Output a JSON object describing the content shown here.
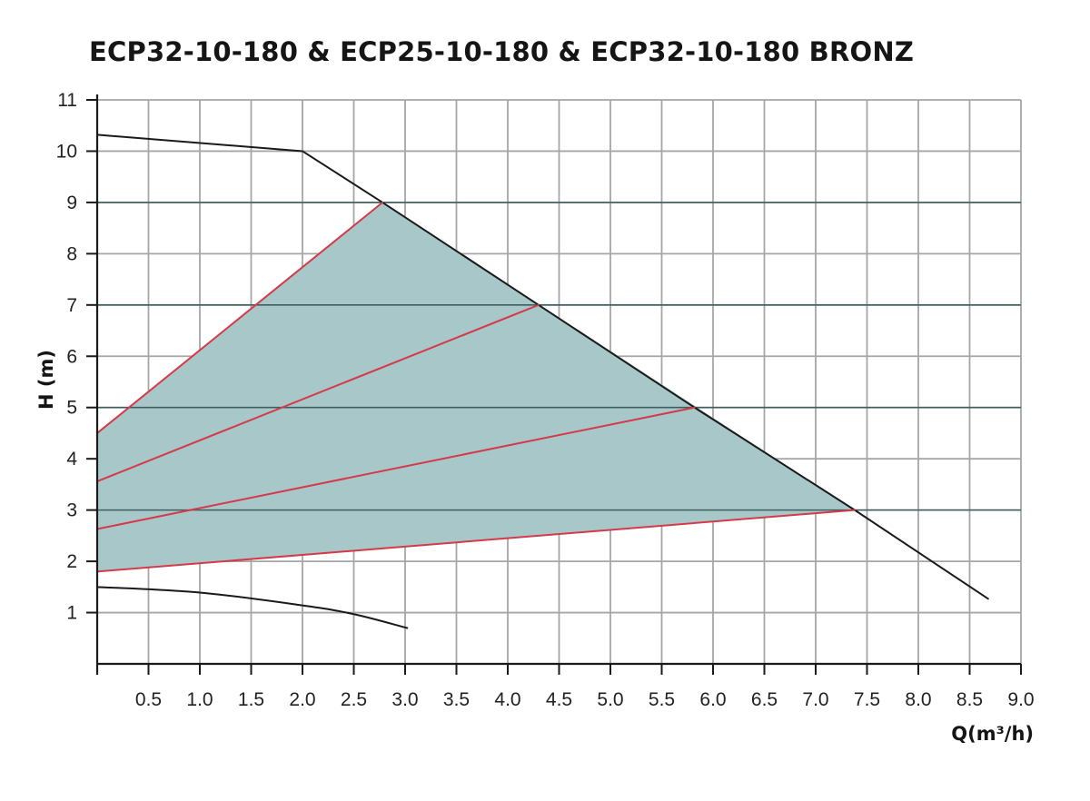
{
  "chart_data": {
    "type": "line",
    "title": "ECP32-10-180 & ECP25-10-180 & ECP32-10-180 BRONZ",
    "xlabel": "Q(m³/h)",
    "ylabel": "H (m)",
    "xlim": [
      0,
      9.0
    ],
    "ylim": [
      0,
      11
    ],
    "grid": true,
    "x_ticks": [
      {
        "value": 0.5,
        "label": "0.5"
      },
      {
        "value": 1.0,
        "label": "1.0"
      },
      {
        "value": 1.5,
        "label": "1.5"
      },
      {
        "value": 2.0,
        "label": "2.0"
      },
      {
        "value": 2.5,
        "label": "2.5"
      },
      {
        "value": 3.0,
        "label": "3.0"
      },
      {
        "value": 3.5,
        "label": "3.5"
      },
      {
        "value": 4.0,
        "label": "4.0"
      },
      {
        "value": 4.5,
        "label": "4.5"
      },
      {
        "value": 5.0,
        "label": "5.0"
      },
      {
        "value": 5.5,
        "label": "5.5"
      },
      {
        "value": 6.0,
        "label": "6.0"
      },
      {
        "value": 6.5,
        "label": "6.5"
      },
      {
        "value": 7.0,
        "label": "7.0"
      },
      {
        "value": 7.5,
        "label": "7.5"
      },
      {
        "value": 8.0,
        "label": "8.0"
      },
      {
        "value": 8.5,
        "label": "8.5"
      },
      {
        "value": 9.0,
        "label": "9.0"
      }
    ],
    "y_ticks": [
      {
        "value": 1,
        "label": "1"
      },
      {
        "value": 2,
        "label": "2"
      },
      {
        "value": 3,
        "label": "3"
      },
      {
        "value": 4,
        "label": "4"
      },
      {
        "value": 5,
        "label": "5"
      },
      {
        "value": 6,
        "label": "6"
      },
      {
        "value": 7,
        "label": "7"
      },
      {
        "value": 8,
        "label": "8"
      },
      {
        "value": 9,
        "label": "9"
      },
      {
        "value": 10,
        "label": "10"
      },
      {
        "value": 11,
        "label": "11"
      }
    ],
    "highlight_h_lines": [
      3,
      5,
      7,
      9
    ],
    "operating_area": {
      "points": [
        [
          0,
          4.5
        ],
        [
          2.78,
          9.0
        ],
        [
          7.38,
          3.0
        ],
        [
          0,
          1.8
        ]
      ],
      "fill_color": "#a8c7c9"
    },
    "series": [
      {
        "points": [
          [
            0,
            10.32
          ],
          [
            2.0,
            10.0
          ],
          [
            2.78,
            9.0
          ],
          [
            4.3,
            7.0
          ],
          [
            5.82,
            5.0
          ],
          [
            7.38,
            3.0
          ],
          [
            8.68,
            1.27
          ]
        ],
        "color": "#1a1a1a"
      },
      {
        "points": [
          [
            0,
            1.5
          ],
          [
            1.0,
            1.39
          ],
          [
            2.0,
            1.14
          ],
          [
            2.5,
            0.97
          ],
          [
            3.02,
            0.7
          ]
        ],
        "color": "#1a1a1a",
        "smooth": true
      },
      {
        "points": [
          [
            0,
            4.5
          ],
          [
            2.78,
            9.0
          ]
        ],
        "color": "#d43a4a"
      },
      {
        "points": [
          [
            0,
            3.56
          ],
          [
            4.3,
            7.0
          ]
        ],
        "color": "#d43a4a"
      },
      {
        "points": [
          [
            0,
            2.63
          ],
          [
            5.82,
            5.0
          ]
        ],
        "color": "#d43a4a"
      },
      {
        "points": [
          [
            0,
            1.8
          ],
          [
            7.38,
            3.0
          ]
        ],
        "color": "#d43a4a"
      }
    ],
    "colors": {
      "grid": "#a6a6a6",
      "highlight_line": "#3e5f60",
      "axis": "#1a1a1a"
    }
  }
}
